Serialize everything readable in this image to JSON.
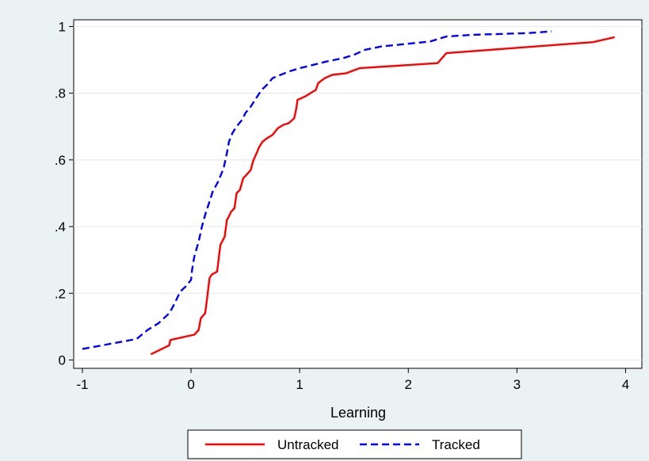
{
  "chart_data": {
    "type": "line",
    "title": "",
    "xlabel": "Learning",
    "ylabel": "",
    "xlim": [
      -1.08,
      4.15
    ],
    "ylim": [
      -0.025,
      1.02
    ],
    "x_ticks": [
      -1,
      0,
      1,
      2,
      3,
      4
    ],
    "x_tick_labels": [
      "-1",
      "0",
      "1",
      "2",
      "3",
      "4"
    ],
    "y_ticks": [
      0,
      0.2,
      0.4,
      0.6,
      0.8,
      1
    ],
    "y_tick_labels": [
      "0",
      ".2",
      ".4",
      ".6",
      ".8",
      "1"
    ],
    "grid": "horizontal",
    "legend_position": "bottom",
    "series": [
      {
        "name": "Untracked",
        "color": "#ff0000",
        "dash": "solid",
        "x": [
          -0.37,
          -0.2,
          -0.19,
          0.03,
          0.07,
          0.09,
          0.13,
          0.15,
          0.17,
          0.19,
          0.24,
          0.27,
          0.31,
          0.33,
          0.34,
          0.37,
          0.4,
          0.42,
          0.45,
          0.48,
          0.51,
          0.55,
          0.57,
          0.59,
          0.61,
          0.63,
          0.66,
          0.7,
          0.75,
          0.8,
          0.85,
          0.9,
          0.95,
          0.97,
          0.98,
          1.05,
          1.15,
          1.17,
          1.23,
          1.3,
          1.43,
          1.55,
          2.27,
          2.35,
          3.7,
          3.9
        ],
        "y": [
          0.017,
          0.044,
          0.06,
          0.076,
          0.09,
          0.125,
          0.14,
          0.19,
          0.245,
          0.256,
          0.265,
          0.345,
          0.37,
          0.42,
          0.425,
          0.445,
          0.455,
          0.5,
          0.51,
          0.545,
          0.555,
          0.57,
          0.595,
          0.61,
          0.625,
          0.64,
          0.655,
          0.665,
          0.675,
          0.695,
          0.705,
          0.71,
          0.725,
          0.755,
          0.78,
          0.79,
          0.81,
          0.83,
          0.845,
          0.855,
          0.86,
          0.875,
          0.89,
          0.92,
          0.953,
          0.968
        ]
      },
      {
        "name": "Tracked",
        "color": "#0000ff",
        "dash": "dashed",
        "x": [
          -1.0,
          -0.5,
          -0.4,
          -0.3,
          -0.2,
          -0.15,
          -0.1,
          -0.05,
          0.0,
          0.01,
          0.03,
          0.07,
          0.1,
          0.13,
          0.16,
          0.2,
          0.25,
          0.3,
          0.33,
          0.35,
          0.38,
          0.42,
          0.47,
          0.5,
          0.55,
          0.6,
          0.65,
          0.7,
          0.75,
          0.9,
          1.0,
          1.25,
          1.4,
          1.5,
          1.6,
          1.75,
          2.2,
          2.35,
          2.6,
          3.1,
          3.32
        ],
        "y": [
          0.033,
          0.063,
          0.09,
          0.11,
          0.14,
          0.17,
          0.205,
          0.22,
          0.24,
          0.27,
          0.31,
          0.355,
          0.4,
          0.435,
          0.465,
          0.505,
          0.535,
          0.575,
          0.62,
          0.655,
          0.68,
          0.7,
          0.72,
          0.74,
          0.76,
          0.785,
          0.81,
          0.825,
          0.845,
          0.865,
          0.875,
          0.895,
          0.905,
          0.915,
          0.93,
          0.94,
          0.955,
          0.97,
          0.975,
          0.98,
          0.985
        ]
      }
    ]
  }
}
